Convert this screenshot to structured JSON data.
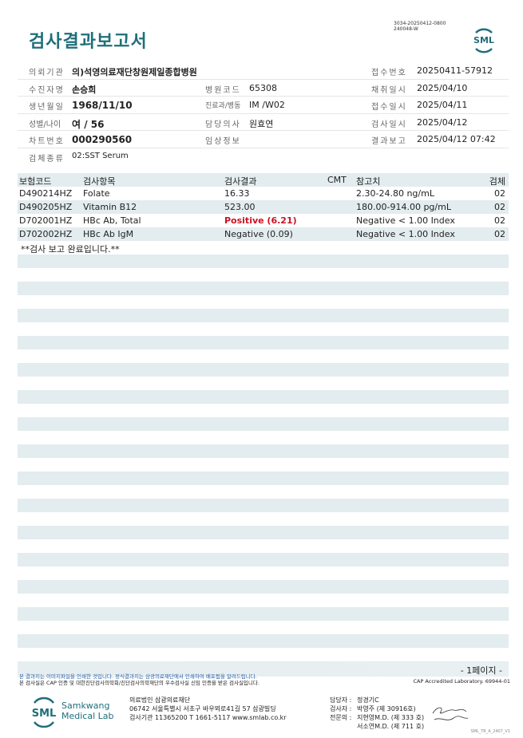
{
  "header": {
    "title": "검사결과보고서",
    "doc_code": [
      "3034-20250412-0800",
      "240048-W"
    ],
    "logo_text": "SML"
  },
  "info": {
    "institution_label": "의뢰기관",
    "institution": "의)석영의료재단창원제일종합병원",
    "receipt_no_label": "접수번호",
    "receipt_no": "20250411-57912",
    "patient_label": "수진자명",
    "patient": "손승희",
    "hospital_code_label": "병원코드",
    "hospital_code": "65308",
    "collect_date_label": "채취일시",
    "collect_date": "2025/04/10",
    "dob_label": "생년월일",
    "dob": "1968/11/10",
    "dept_label": "진료과/병동",
    "dept": "IM /W02",
    "receipt_date_label": "접수일시",
    "receipt_date": "2025/04/11",
    "sex_age_label": "성별/나이",
    "sex_age": "여 / 56",
    "doctor_label": "담당의사",
    "doctor": "원효연",
    "test_date_label": "검사일시",
    "test_date": "2025/04/12",
    "chart_no_label": "차트번호",
    "chart_no": "000290560",
    "clinical_label": "임상정보",
    "clinical": "",
    "report_label": "결과보고",
    "report_date": "2025/04/12 07:42",
    "specimen_label": "검체종류",
    "specimen": "02:SST Serum"
  },
  "table": {
    "headers": {
      "code": "보험코드",
      "item": "검사항목",
      "result": "검사결과",
      "cmt": "CMT",
      "ref": "참고치",
      "specimen": "검체"
    },
    "rows": [
      {
        "code": "D490214HZ",
        "item": "Folate",
        "result": "16.33",
        "ref": "2.30-24.80 ng/mL",
        "specimen": "02"
      },
      {
        "code": "D490205HZ",
        "item": "Vitamin B12",
        "result": "523.00",
        "ref": "180.00-914.00 pg/mL",
        "specimen": "02"
      },
      {
        "code": "D702001HZ",
        "item": "HBc Ab, Total",
        "result": "Positive (6.21)",
        "ref": "Negative < 1.00 Index",
        "specimen": "02",
        "abnormal": true
      },
      {
        "code": "D702002HZ",
        "item": "HBc Ab IgM",
        "result": "Negative (0.09)",
        "ref": "Negative < 1.00 Index",
        "specimen": "02"
      }
    ],
    "note": "**검사 보고 완료입니다.**"
  },
  "colors": {
    "brand": "#1f6f7a",
    "abnormal": "#d01020",
    "stripe": "#e3ecef"
  },
  "footer": {
    "page": "- 1페이지 -",
    "notice1": "본 결과지는 이미지파일을 인쇄한 것입니다. 정식결과지는 삼광의료재단에서 인쇄하여 배포됨을 알려드립니다.",
    "notice2": "본 검사실은 CAP 인증 및 대한진단검사의학회/진단검사의학재단의 우수검사실 신임 인증을 받은 검사실입니다.",
    "cap": "CAP Accredited Laboratory. 69944-01",
    "logo_name": [
      "Samkwang",
      "Medical Lab"
    ],
    "org": "의료법인 삼광의료재단",
    "address": "06742 서울특별시 서초구 바우뫼로41길 57 삼광빌딩",
    "contact": "검사기관 11365200 T 1661-5117 www.smlab.co.kr",
    "staff": [
      {
        "label": "담당자 :",
        "name": "정경기C"
      },
      {
        "label": "검사자 :",
        "name": "박영주 (제 30916호)"
      },
      {
        "label": "전문의 :",
        "name": "지현영M.D. (제 333 호)"
      },
      {
        "label": "",
        "name": "서소연M.D. (제 711 호)"
      }
    ],
    "form_code": "SML_TR_A_2407_V1"
  }
}
